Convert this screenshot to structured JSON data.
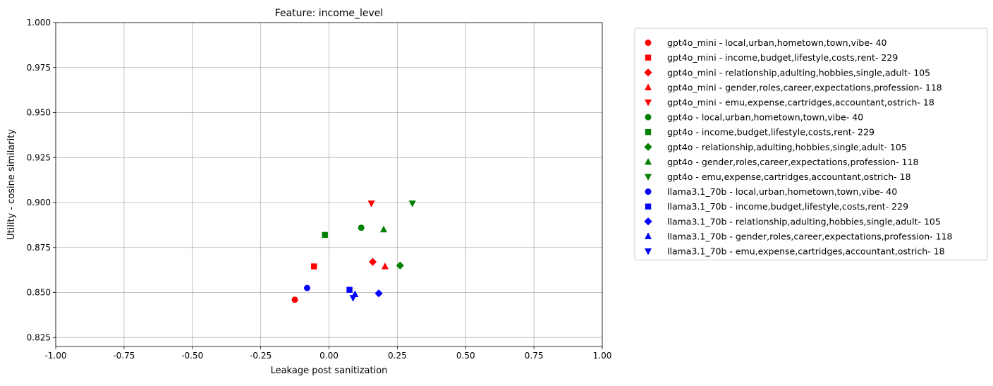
{
  "chart_data": {
    "type": "scatter",
    "title": "Feature: income_level",
    "xlabel": "Leakage post sanitization",
    "ylabel": "Utility - cosine similarity",
    "xlim": [
      -1.0,
      1.0
    ],
    "ylim": [
      0.82,
      1.0
    ],
    "xticks": [
      "-1.00",
      "-0.75",
      "-0.50",
      "-0.25",
      "0.00",
      "0.25",
      "0.50",
      "0.75",
      "1.00"
    ],
    "yticks": [
      "0.825",
      "0.850",
      "0.875",
      "0.900",
      "0.925",
      "0.950",
      "0.975",
      "1.000"
    ],
    "grid": true,
    "legend_position": "outside-right",
    "series": [
      {
        "name": "gpt4o_mini - local,urban,hometown,town,vibe- 40",
        "color": "#ff0000",
        "marker": "circle",
        "x": -0.125,
        "y": 0.846
      },
      {
        "name": "gpt4o_mini - income,budget,lifestyle,costs,rent- 229",
        "color": "#ff0000",
        "marker": "square",
        "x": -0.055,
        "y": 0.8645
      },
      {
        "name": "gpt4o_mini - relationship,adulting,hobbies,single,adult- 105",
        "color": "#ff0000",
        "marker": "diamond",
        "x": 0.16,
        "y": 0.867
      },
      {
        "name": "gpt4o_mini - gender,roles,career,expectations,profession- 118",
        "color": "#ff0000",
        "marker": "triangle-up",
        "x": 0.205,
        "y": 0.8645
      },
      {
        "name": "gpt4o_mini - emu,expense,cartridges,accountant,ostrich- 18",
        "color": "#ff0000",
        "marker": "triangle-down",
        "x": 0.155,
        "y": 0.8995
      },
      {
        "name": "gpt4o - local,urban,hometown,town,vibe- 40",
        "color": "#008000",
        "marker": "circle",
        "x": 0.118,
        "y": 0.886
      },
      {
        "name": "gpt4o - income,budget,lifestyle,costs,rent- 229",
        "color": "#008000",
        "marker": "square",
        "x": -0.015,
        "y": 0.882
      },
      {
        "name": "gpt4o - relationship,adulting,hobbies,single,adult- 105",
        "color": "#008000",
        "marker": "diamond",
        "x": 0.26,
        "y": 0.865
      },
      {
        "name": "gpt4o - gender,roles,career,expectations,profession- 118",
        "color": "#008000",
        "marker": "triangle-up",
        "x": 0.2,
        "y": 0.885
      },
      {
        "name": "gpt4o - emu,expense,cartridges,accountant,ostrich- 18",
        "color": "#008000",
        "marker": "triangle-down",
        "x": 0.305,
        "y": 0.8995
      },
      {
        "name": "llama3.1_70b - local,urban,hometown,town,vibe- 40",
        "color": "#0000ff",
        "marker": "circle",
        "x": -0.08,
        "y": 0.8525
      },
      {
        "name": "llama3.1_70b - income,budget,lifestyle,costs,rent- 229",
        "color": "#0000ff",
        "marker": "square",
        "x": 0.075,
        "y": 0.8515
      },
      {
        "name": "llama3.1_70b - relationship,adulting,hobbies,single,adult- 105",
        "color": "#0000ff",
        "marker": "diamond",
        "x": 0.182,
        "y": 0.8495
      },
      {
        "name": "llama3.1_70b - gender,roles,career,expectations,profession- 118",
        "color": "#0000ff",
        "marker": "triangle-up",
        "x": 0.095,
        "y": 0.849
      },
      {
        "name": "llama3.1_70b - emu,expense,cartridges,accountant,ostrich- 18",
        "color": "#0000ff",
        "marker": "triangle-down",
        "x": 0.088,
        "y": 0.847
      }
    ]
  }
}
